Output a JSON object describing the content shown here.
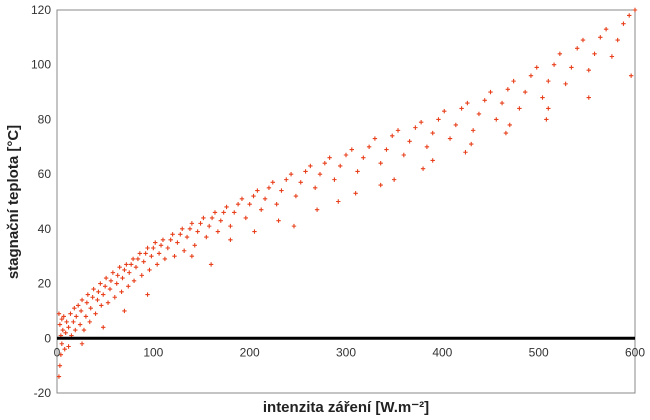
{
  "chart_data": {
    "type": "scatter",
    "title": "",
    "xlabel": "intenzita záření [W.m⁻²]",
    "ylabel": "stagnační teplota [°C]",
    "xlim": [
      0,
      600
    ],
    "ylim": [
      -20,
      120
    ],
    "x_ticks": [
      0,
      100,
      200,
      300,
      400,
      500,
      600
    ],
    "y_ticks": [
      -20,
      0,
      20,
      40,
      60,
      80,
      100,
      120
    ],
    "grid": false,
    "legend": "none",
    "marker": "plus",
    "marker_color": "#e8401c",
    "zero_line_color": "#000000",
    "series": [
      {
        "values": [
          [
            2,
            -14
          ],
          [
            3,
            -10
          ],
          [
            4,
            -6
          ],
          [
            5,
            -2
          ],
          [
            4,
            1
          ],
          [
            6,
            3
          ],
          [
            3,
            5
          ],
          [
            5,
            7
          ],
          [
            2,
            9
          ],
          [
            8,
            -4
          ],
          [
            9,
            2
          ],
          [
            10,
            6
          ],
          [
            7,
            8
          ],
          [
            12,
            -3
          ],
          [
            12,
            4
          ],
          [
            14,
            9
          ],
          [
            15,
            1
          ],
          [
            17,
            6
          ],
          [
            18,
            11
          ],
          [
            19,
            3
          ],
          [
            20,
            8
          ],
          [
            22,
            12
          ],
          [
            24,
            5
          ],
          [
            25,
            10
          ],
          [
            26,
            14
          ],
          [
            28,
            3
          ],
          [
            30,
            8
          ],
          [
            31,
            13
          ],
          [
            32,
            16
          ],
          [
            34,
            6
          ],
          [
            35,
            11
          ],
          [
            37,
            15
          ],
          [
            38,
            18
          ],
          [
            40,
            9
          ],
          [
            42,
            14
          ],
          [
            43,
            17
          ],
          [
            45,
            20
          ],
          [
            46,
            12
          ],
          [
            48,
            16
          ],
          [
            50,
            19
          ],
          [
            51,
            22
          ],
          [
            53,
            13
          ],
          [
            55,
            18
          ],
          [
            56,
            21
          ],
          [
            58,
            24
          ],
          [
            60,
            15
          ],
          [
            62,
            20
          ],
          [
            63,
            23
          ],
          [
            65,
            26
          ],
          [
            67,
            17
          ],
          [
            68,
            22
          ],
          [
            70,
            25
          ],
          [
            72,
            27
          ],
          [
            74,
            19
          ],
          [
            75,
            24
          ],
          [
            77,
            27
          ],
          [
            79,
            29
          ],
          [
            80,
            21
          ],
          [
            82,
            26
          ],
          [
            84,
            29
          ],
          [
            86,
            31
          ],
          [
            88,
            23
          ],
          [
            90,
            28
          ],
          [
            92,
            31
          ],
          [
            94,
            33
          ],
          [
            96,
            25
          ],
          [
            98,
            30
          ],
          [
            100,
            33
          ],
          [
            102,
            35
          ],
          [
            104,
            27
          ],
          [
            106,
            31
          ],
          [
            108,
            34
          ],
          [
            110,
            36
          ],
          [
            112,
            29
          ],
          [
            115,
            33
          ],
          [
            118,
            36
          ],
          [
            120,
            38
          ],
          [
            122,
            30
          ],
          [
            125,
            35
          ],
          [
            128,
            38
          ],
          [
            130,
            40
          ],
          [
            132,
            32
          ],
          [
            135,
            37
          ],
          [
            138,
            40
          ],
          [
            140,
            42
          ],
          [
            143,
            34
          ],
          [
            146,
            39
          ],
          [
            149,
            42
          ],
          [
            152,
            44
          ],
          [
            155,
            37
          ],
          [
            158,
            41
          ],
          [
            161,
            44
          ],
          [
            164,
            46
          ],
          [
            167,
            39
          ],
          [
            170,
            43
          ],
          [
            173,
            46
          ],
          [
            176,
            48
          ],
          [
            180,
            41
          ],
          [
            184,
            46
          ],
          [
            188,
            49
          ],
          [
            192,
            51
          ],
          [
            196,
            44
          ],
          [
            200,
            49
          ],
          [
            204,
            52
          ],
          [
            208,
            54
          ],
          [
            212,
            47
          ],
          [
            216,
            51
          ],
          [
            220,
            55
          ],
          [
            224,
            57
          ],
          [
            228,
            49
          ],
          [
            233,
            54
          ],
          [
            238,
            58
          ],
          [
            243,
            60
          ],
          [
            248,
            52
          ],
          [
            253,
            57
          ],
          [
            258,
            61
          ],
          [
            263,
            63
          ],
          [
            268,
            55
          ],
          [
            273,
            60
          ],
          [
            278,
            64
          ],
          [
            283,
            66
          ],
          [
            288,
            58
          ],
          [
            294,
            63
          ],
          [
            300,
            67
          ],
          [
            306,
            69
          ],
          [
            312,
            61
          ],
          [
            318,
            66
          ],
          [
            324,
            70
          ],
          [
            330,
            73
          ],
          [
            336,
            64
          ],
          [
            342,
            69
          ],
          [
            348,
            74
          ],
          [
            354,
            76
          ],
          [
            360,
            67
          ],
          [
            366,
            72
          ],
          [
            372,
            77
          ],
          [
            378,
            79
          ],
          [
            384,
            70
          ],
          [
            390,
            75
          ],
          [
            396,
            80
          ],
          [
            402,
            83
          ],
          [
            408,
            73
          ],
          [
            414,
            78
          ],
          [
            420,
            84
          ],
          [
            426,
            86
          ],
          [
            432,
            76
          ],
          [
            438,
            82
          ],
          [
            444,
            87
          ],
          [
            450,
            90
          ],
          [
            456,
            80
          ],
          [
            462,
            86
          ],
          [
            468,
            91
          ],
          [
            474,
            94
          ],
          [
            480,
            84
          ],
          [
            486,
            90
          ],
          [
            492,
            96
          ],
          [
            498,
            99
          ],
          [
            504,
            88
          ],
          [
            510,
            94
          ],
          [
            516,
            100
          ],
          [
            522,
            104
          ],
          [
            528,
            93
          ],
          [
            534,
            99
          ],
          [
            540,
            106
          ],
          [
            546,
            109
          ],
          [
            552,
            98
          ],
          [
            558,
            104
          ],
          [
            564,
            110
          ],
          [
            570,
            113
          ],
          [
            576,
            103
          ],
          [
            582,
            109
          ],
          [
            588,
            115
          ],
          [
            594,
            118
          ],
          [
            600,
            120
          ],
          [
            140,
            30
          ],
          [
            180,
            36
          ],
          [
            230,
            43
          ],
          [
            270,
            47
          ],
          [
            310,
            53
          ],
          [
            350,
            58
          ],
          [
            390,
            65
          ],
          [
            430,
            71
          ],
          [
            470,
            78
          ],
          [
            510,
            84
          ],
          [
            26,
            -2
          ],
          [
            48,
            4
          ],
          [
            70,
            10
          ],
          [
            94,
            16
          ],
          [
            160,
            27
          ],
          [
            205,
            39
          ],
          [
            246,
            41
          ],
          [
            292,
            50
          ],
          [
            336,
            56
          ],
          [
            380,
            62
          ],
          [
            424,
            68
          ],
          [
            466,
            75
          ],
          [
            508,
            80
          ],
          [
            552,
            88
          ],
          [
            596,
            96
          ]
        ]
      }
    ]
  }
}
